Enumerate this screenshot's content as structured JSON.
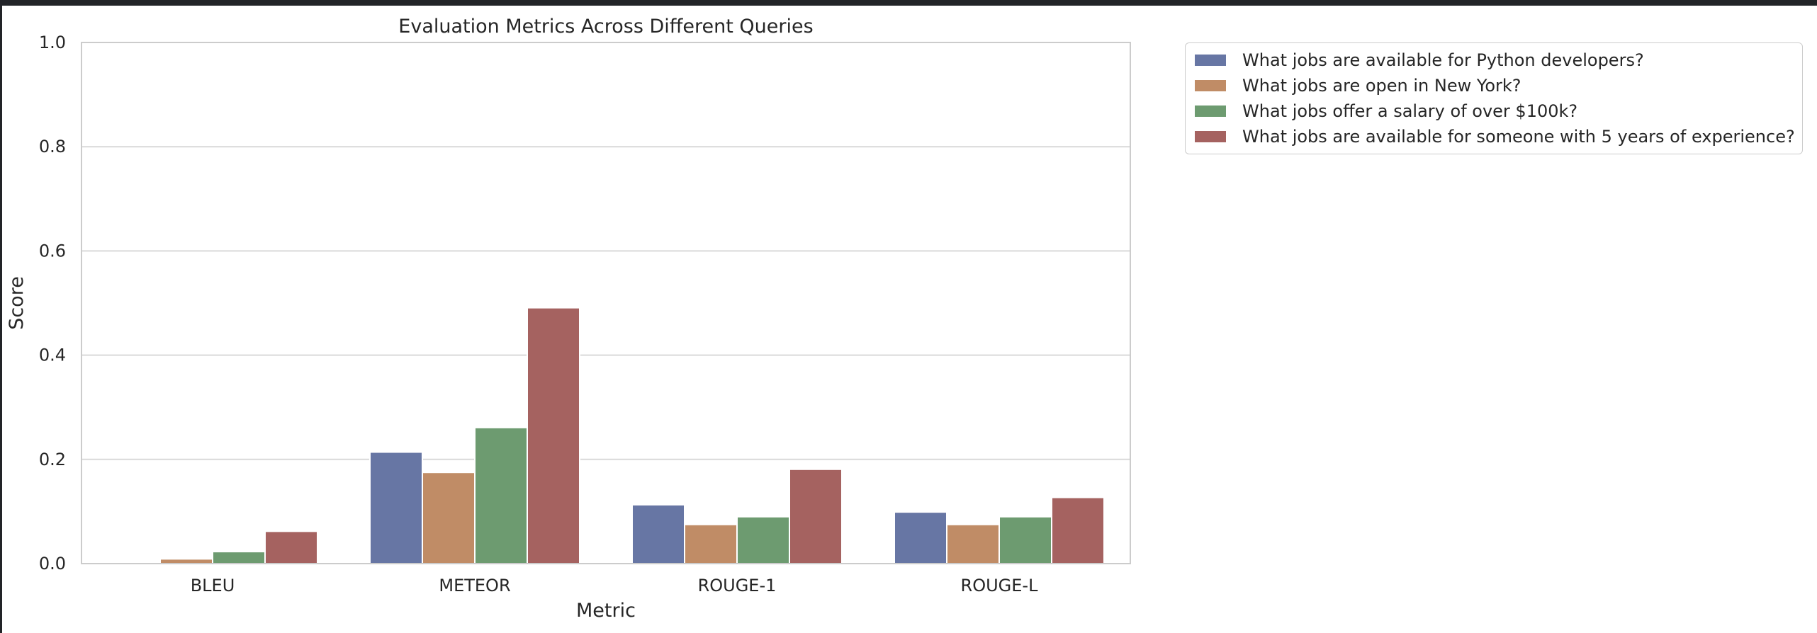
{
  "chart_data": {
    "type": "bar",
    "title": "Evaluation Metrics Across Different Queries",
    "xlabel": "Metric",
    "ylabel": "Score",
    "ylim": [
      0,
      1.0
    ],
    "yticks": [
      "0.0",
      "0.2",
      "0.4",
      "0.6",
      "0.8",
      "1.0"
    ],
    "grid": true,
    "legend_position": "outside-top-right",
    "categories": [
      "BLEU",
      "METEOR",
      "ROUGE-1",
      "ROUGE-L"
    ],
    "series": [
      {
        "name": "What jobs are available for Python developers?",
        "color": "#6776a4",
        "values": [
          0.0,
          0.214,
          0.113,
          0.099
        ]
      },
      {
        "name": "What jobs are open in New York?",
        "color": "#c08c66",
        "values": [
          0.009,
          0.175,
          0.075,
          0.075
        ]
      },
      {
        "name": "What jobs offer a salary of over $100k?",
        "color": "#6d9b70",
        "values": [
          0.023,
          0.261,
          0.09,
          0.09
        ]
      },
      {
        "name": "What jobs are available for someone with 5 years of experience?",
        "color": "#a56260",
        "values": [
          0.062,
          0.491,
          0.181,
          0.127
        ]
      }
    ]
  }
}
